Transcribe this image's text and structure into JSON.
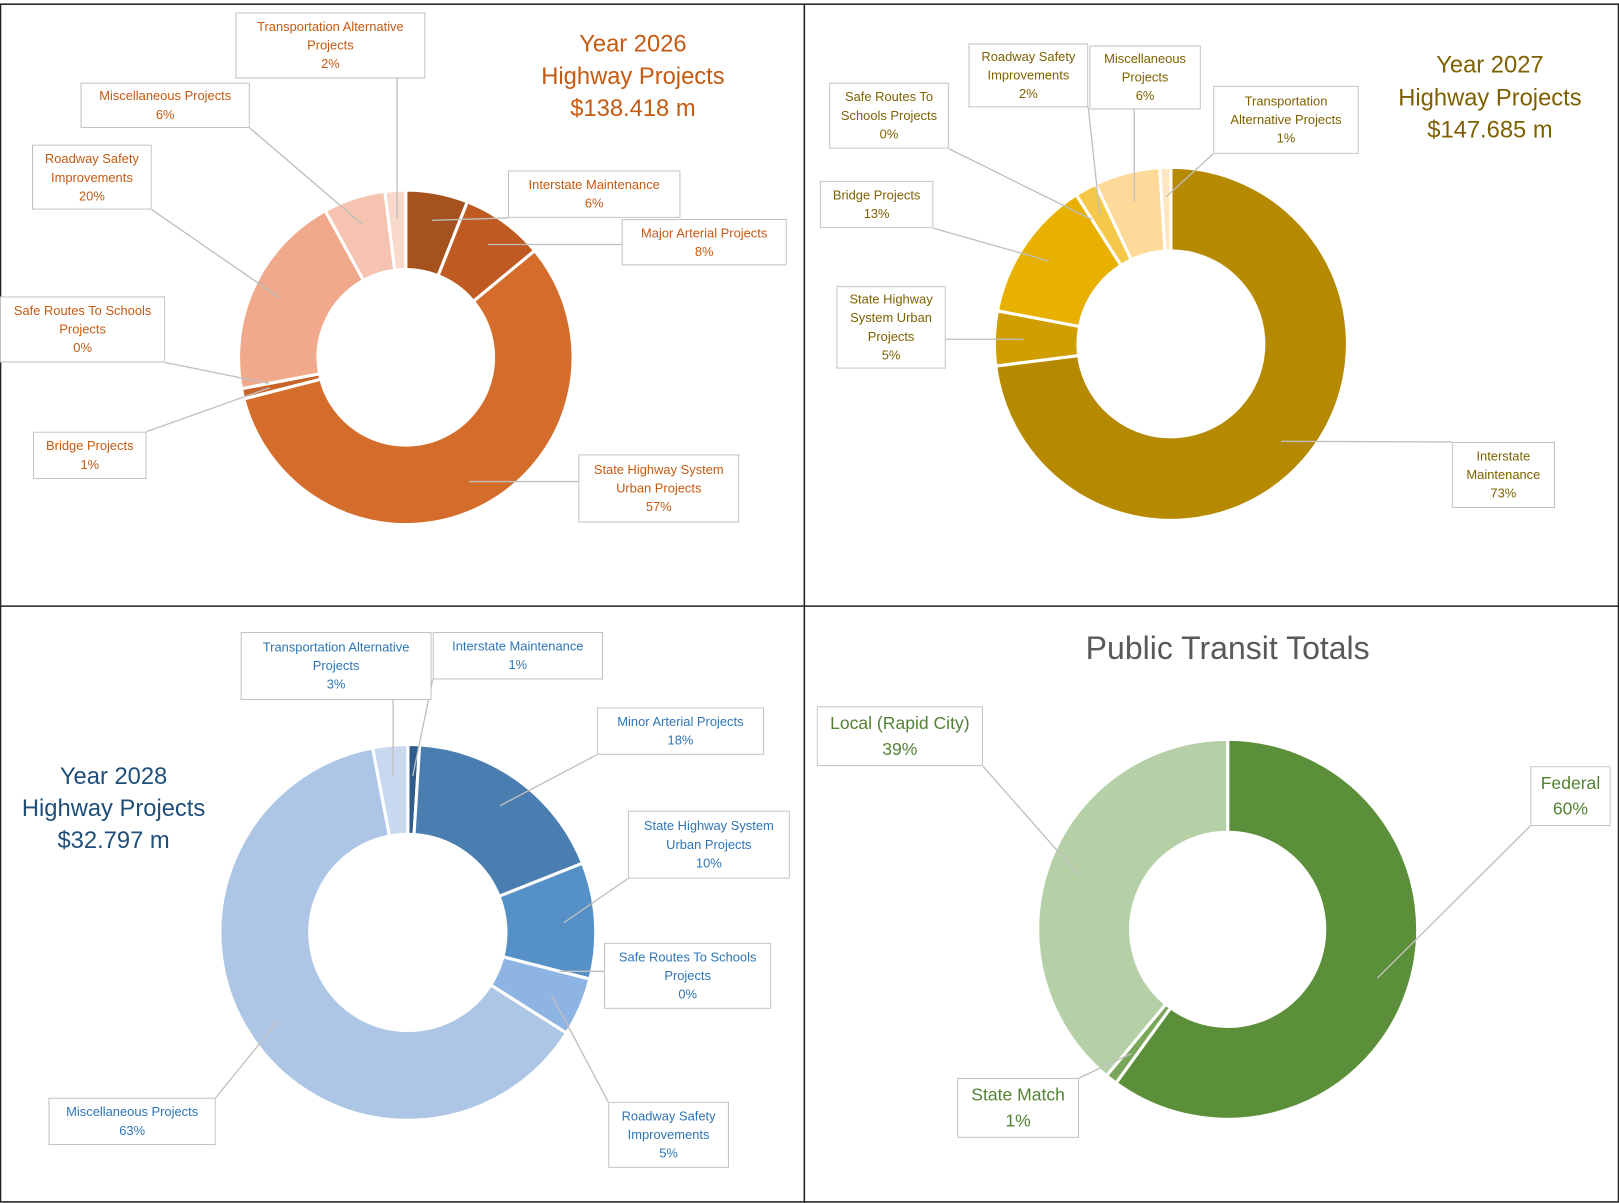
{
  "chart_data": [
    {
      "type": "donut",
      "title": [
        "Year 2026",
        "Highway Projects",
        "$138.418 m"
      ],
      "title_color": "#c55a11",
      "label_color": "#c55a11",
      "categories": [
        "Interstate Maintenance",
        "Major Arterial Projects",
        "State Highway System Urban Projects",
        "Bridge Projects",
        "Safe Routes To Schools Projects",
        "Roadway Safety Improvements",
        "Miscellaneous Projects",
        "Transportation Alternative Projects"
      ],
      "values": [
        6,
        8,
        57,
        1,
        0,
        20,
        6,
        2
      ],
      "value_labels": [
        "6%",
        "8%",
        "57%",
        "1%",
        "0%",
        "20%",
        "6%",
        "2%"
      ],
      "colors": [
        "#a5521f",
        "#bf5b22",
        "#d46d2b",
        "#c8642a",
        "#e0885a",
        "#f0a98a",
        "#f5c3b0",
        "#f8d9cc"
      ]
    },
    {
      "type": "donut",
      "title": [
        "Year 2027",
        "Highway Projects",
        "$147.685 m"
      ],
      "title_color": "#7f6000",
      "label_color": "#7f6000",
      "categories": [
        "Interstate Maintenance",
        "State Highway System Urban Projects",
        "Bridge Projects",
        "Safe Routes To Schools Projects",
        "Roadway Safety Improvements",
        "Miscellaneous Projects",
        "Transportation Alternative Projects"
      ],
      "values": [
        73,
        5,
        13,
        0,
        2,
        6,
        1
      ],
      "value_labels": [
        "73%",
        "5%",
        "13%",
        "0%",
        "2%",
        "6%",
        "1%"
      ],
      "colors": [
        "#b68a00",
        "#cf9e00",
        "#e8b100",
        "#f2c12e",
        "#f5c84a",
        "#fdd99a",
        "#fde6c0"
      ]
    },
    {
      "type": "donut",
      "title": [
        "Year 2028",
        "Highway Projects",
        "$32.797 m"
      ],
      "title_color": "#1f4e79",
      "label_color": "#2e75b6",
      "categories": [
        "Interstate Maintenance",
        "Minor Arterial Projects",
        "State Highway System Urban Projects",
        "Safe Routes To Schools Projects",
        "Roadway Safety Improvements",
        "Miscellaneous Projects",
        "Transportation Alternative Projects"
      ],
      "values": [
        1,
        18,
        10,
        0,
        5,
        63,
        3
      ],
      "value_labels": [
        "1%",
        "18%",
        "10%",
        "0%",
        "5%",
        "63%",
        "3%"
      ],
      "colors": [
        "#2f5c8a",
        "#4a7eb0",
        "#5590c7",
        "#6fa2d6",
        "#8eb4e3",
        "#aec6e6",
        "#c8d9ef"
      ]
    },
    {
      "type": "donut",
      "title": [
        "Public Transit Totals"
      ],
      "title_color": "#595959",
      "label_color": "#548235",
      "categories": [
        "Federal",
        "State Match",
        "Local (Rapid City)"
      ],
      "values": [
        60,
        1,
        39
      ],
      "value_labels": [
        "60%",
        "1%",
        "39%"
      ],
      "colors": [
        "#5b8f3a",
        "#7aa65a",
        "#b5cfa6"
      ]
    }
  ]
}
